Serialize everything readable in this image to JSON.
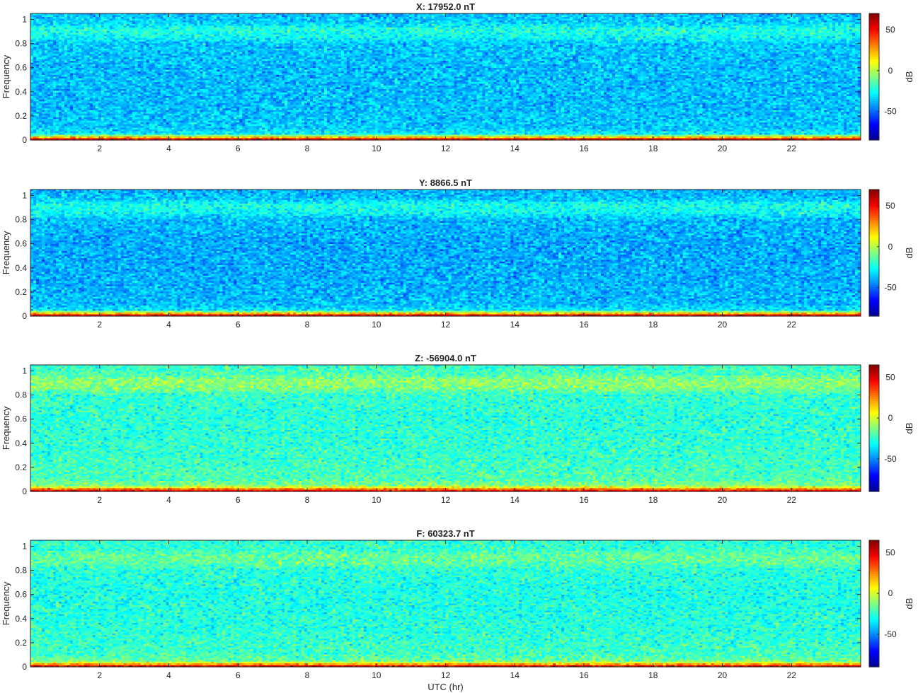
{
  "figure": {
    "shared_xlabel": "UTC (hr)",
    "colormap": "jet",
    "colormap_stops": [
      "#00008f",
      "#0000ff",
      "#0080ff",
      "#00ffff",
      "#80ff80",
      "#ffff00",
      "#ff8000",
      "#ff0000",
      "#800000"
    ]
  },
  "chart_data": [
    {
      "type": "heatmap",
      "title": "X: 17952.0 nT",
      "xlabel": "",
      "ylabel": "Frequency",
      "colorbar_label": "dB",
      "x_range": [
        0,
        24
      ],
      "xlim": [
        0,
        24
      ],
      "ylim": [
        0,
        1.05
      ],
      "x_ticks": [
        2,
        4,
        6,
        8,
        10,
        12,
        14,
        16,
        18,
        20,
        22
      ],
      "y_ticks": [
        0,
        0.2,
        0.4,
        0.6,
        0.8,
        1
      ],
      "clim": [
        -85,
        70
      ],
      "colorbar_ticks": [
        -50,
        0,
        50
      ],
      "level_profile": {
        "frequency": [
          0,
          0.01,
          0.03,
          0.05,
          0.1,
          0.3,
          0.6,
          0.8,
          0.86,
          0.92,
          0.97,
          1.05
        ],
        "db": [
          70,
          48,
          5,
          -28,
          -35,
          -37,
          -37,
          -35,
          -25,
          -22,
          -33,
          -37
        ]
      },
      "noise_db": 10
    },
    {
      "type": "heatmap",
      "title": "Y: 8866.5 nT",
      "xlabel": "",
      "ylabel": "Frequency",
      "colorbar_label": "dB",
      "x_range": [
        0,
        24
      ],
      "xlim": [
        0,
        24
      ],
      "ylim": [
        0,
        1.05
      ],
      "x_ticks": [
        2,
        4,
        6,
        8,
        10,
        12,
        14,
        16,
        18,
        20,
        22
      ],
      "y_ticks": [
        0,
        0.2,
        0.4,
        0.6,
        0.8,
        1
      ],
      "clim": [
        -85,
        70
      ],
      "colorbar_ticks": [
        -50,
        0,
        50
      ],
      "level_profile": {
        "frequency": [
          0,
          0.01,
          0.03,
          0.05,
          0.1,
          0.3,
          0.6,
          0.8,
          0.86,
          0.92,
          0.97,
          1.05
        ],
        "db": [
          70,
          48,
          5,
          -30,
          -37,
          -39,
          -40,
          -37,
          -26,
          -23,
          -35,
          -39
        ]
      },
      "noise_db": 10
    },
    {
      "type": "heatmap",
      "title": "Z: -56904.0 nT",
      "xlabel": "",
      "ylabel": "Frequency",
      "colorbar_label": "dB",
      "x_range": [
        0,
        24
      ],
      "xlim": [
        0,
        24
      ],
      "ylim": [
        0,
        1.05
      ],
      "x_ticks": [
        2,
        4,
        6,
        8,
        10,
        12,
        14,
        16,
        18,
        20,
        22
      ],
      "y_ticks": [
        0,
        0.2,
        0.4,
        0.6,
        0.8,
        1
      ],
      "clim": [
        -90,
        65
      ],
      "colorbar_ticks": [
        -50,
        0,
        50
      ],
      "level_profile": {
        "frequency": [
          0,
          0.01,
          0.03,
          0.05,
          0.1,
          0.3,
          0.6,
          0.8,
          0.86,
          0.92,
          0.97,
          1.05
        ],
        "db": [
          62,
          40,
          12,
          -12,
          -20,
          -24,
          -26,
          -24,
          -12,
          -10,
          -20,
          -24
        ]
      },
      "noise_db": 10
    },
    {
      "type": "heatmap",
      "title": "F: 60323.7 nT",
      "xlabel": "UTC (hr)",
      "ylabel": "Frequency",
      "colorbar_label": "dB",
      "x_range": [
        0,
        24
      ],
      "xlim": [
        0,
        24
      ],
      "ylim": [
        0,
        1.05
      ],
      "x_ticks": [
        2,
        4,
        6,
        8,
        10,
        12,
        14,
        16,
        18,
        20,
        22
      ],
      "y_ticks": [
        0,
        0.2,
        0.4,
        0.6,
        0.8,
        1
      ],
      "clim": [
        -90,
        65
      ],
      "colorbar_ticks": [
        -50,
        0,
        50
      ],
      "level_profile": {
        "frequency": [
          0,
          0.01,
          0.03,
          0.05,
          0.1,
          0.3,
          0.6,
          0.8,
          0.86,
          0.92,
          0.97,
          1.05
        ],
        "db": [
          62,
          38,
          8,
          -16,
          -22,
          -26,
          -28,
          -26,
          -18,
          -16,
          -24,
          -26
        ]
      },
      "noise_db": 10
    }
  ]
}
